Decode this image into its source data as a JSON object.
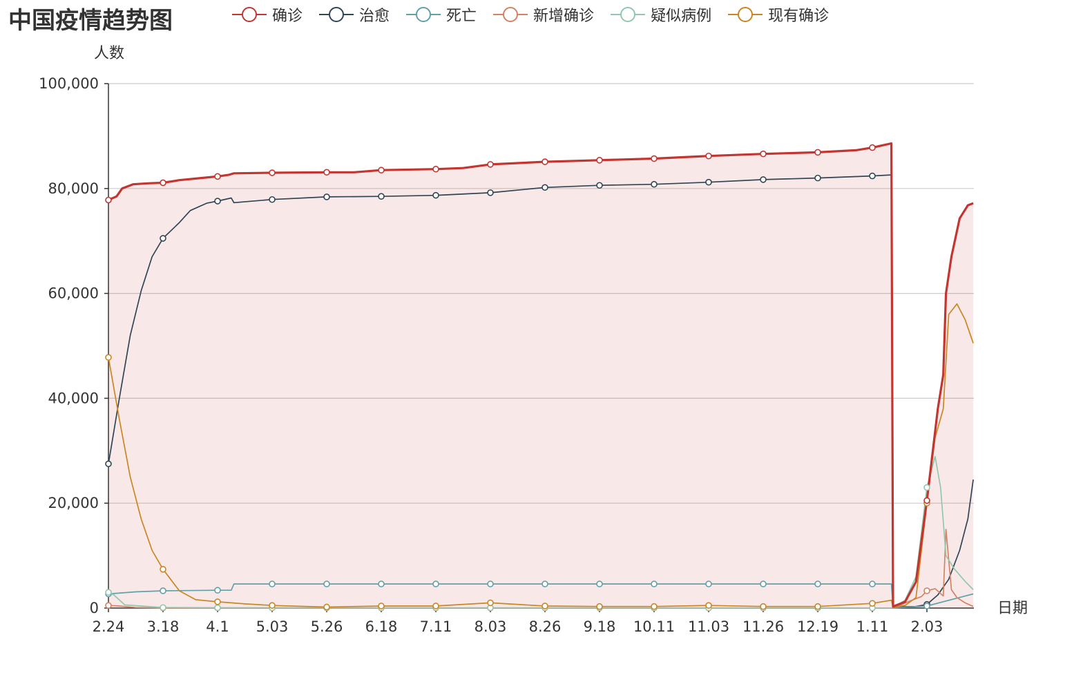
{
  "chart_data": {
    "type": "line",
    "title": "中国疫情趋势图",
    "ylabel": "人数",
    "xlabel": "日期",
    "ylim": [
      0,
      100000
    ],
    "y_ticks": [
      0,
      20000,
      40000,
      60000,
      80000,
      100000
    ],
    "y_tick_labels": [
      "0",
      "20,000",
      "40,000",
      "60,000",
      "80,000",
      "100,000"
    ],
    "x_tick_labels": [
      "2.24",
      "3.18",
      "4.1",
      "5.03",
      "5.26",
      "6.18",
      "7.11",
      "8.03",
      "8.26",
      "9.18",
      "10.11",
      "11.03",
      "11.26",
      "12.19",
      "1.11",
      "2.03"
    ],
    "grid": true,
    "legend_position": "top",
    "series": [
      {
        "name": "确诊",
        "color": "#c23531",
        "area": true,
        "points": [
          [
            0,
            77800
          ],
          [
            0.15,
            78500
          ],
          [
            0.25,
            80000
          ],
          [
            0.45,
            80800
          ],
          [
            0.75,
            81000
          ],
          [
            1,
            81100
          ],
          [
            1.3,
            81600
          ],
          [
            1.7,
            82000
          ],
          [
            2,
            82300
          ],
          [
            2.2,
            82600
          ],
          [
            2.3,
            82900
          ],
          [
            3,
            83000
          ],
          [
            4,
            83100
          ],
          [
            4.5,
            83100
          ],
          [
            5,
            83500
          ],
          [
            6,
            83700
          ],
          [
            6.5,
            83900
          ],
          [
            7,
            84600
          ],
          [
            8,
            85100
          ],
          [
            9,
            85400
          ],
          [
            10,
            85700
          ],
          [
            11,
            86200
          ],
          [
            12,
            86600
          ],
          [
            13,
            86900
          ],
          [
            13.7,
            87300
          ],
          [
            14,
            87800
          ],
          [
            14.35,
            88600
          ],
          [
            14.38,
            300
          ],
          [
            14.6,
            1200
          ],
          [
            14.8,
            5000
          ],
          [
            15,
            20500
          ],
          [
            15.2,
            38000
          ],
          [
            15.3,
            44500
          ],
          [
            15.35,
            60000
          ],
          [
            15.45,
            67000
          ],
          [
            15.6,
            74300
          ],
          [
            15.75,
            76800
          ],
          [
            15.85,
            77200
          ]
        ]
      },
      {
        "name": "治愈",
        "color": "#2f4554",
        "area": false,
        "points": [
          [
            0,
            27500
          ],
          [
            0.2,
            40000
          ],
          [
            0.4,
            52000
          ],
          [
            0.6,
            60500
          ],
          [
            0.8,
            67000
          ],
          [
            1,
            70500
          ],
          [
            1.3,
            73500
          ],
          [
            1.5,
            75800
          ],
          [
            1.8,
            77200
          ],
          [
            2,
            77600
          ],
          [
            2.25,
            78200
          ],
          [
            2.3,
            77300
          ],
          [
            3,
            77900
          ],
          [
            4,
            78400
          ],
          [
            5,
            78500
          ],
          [
            6,
            78700
          ],
          [
            7,
            79200
          ],
          [
            8,
            80200
          ],
          [
            9,
            80600
          ],
          [
            10,
            80800
          ],
          [
            11,
            81200
          ],
          [
            12,
            81700
          ],
          [
            13,
            82000
          ],
          [
            14,
            82400
          ],
          [
            14.35,
            82600
          ],
          [
            14.38,
            200
          ],
          [
            14.8,
            300
          ],
          [
            15,
            700
          ],
          [
            15.2,
            2500
          ],
          [
            15.4,
            5500
          ],
          [
            15.6,
            11000
          ],
          [
            15.75,
            17000
          ],
          [
            15.85,
            24500
          ]
        ]
      },
      {
        "name": "死亡",
        "color": "#61a0a8",
        "area": false,
        "points": [
          [
            0,
            2700
          ],
          [
            0.5,
            3100
          ],
          [
            1,
            3300
          ],
          [
            2,
            3400
          ],
          [
            2.25,
            3400
          ],
          [
            2.3,
            4600
          ],
          [
            14.35,
            4600
          ],
          [
            14.38,
            10
          ],
          [
            15,
            400
          ],
          [
            15.85,
            2700
          ]
        ]
      },
      {
        "name": "新增确诊",
        "color": "#d48265",
        "area": false,
        "points": [
          [
            0,
            500
          ],
          [
            0.2,
            400
          ],
          [
            0.5,
            100
          ],
          [
            1,
            30
          ],
          [
            14.35,
            20
          ],
          [
            14.38,
            0
          ],
          [
            14.5,
            500
          ],
          [
            14.7,
            1400
          ],
          [
            14.9,
            2200
          ],
          [
            15,
            3300
          ],
          [
            15.15,
            3700
          ],
          [
            15.3,
            2300
          ],
          [
            15.35,
            15000
          ],
          [
            15.45,
            3500
          ],
          [
            15.55,
            2000
          ],
          [
            15.7,
            1000
          ],
          [
            15.85,
            300
          ]
        ]
      },
      {
        "name": "疑似病例",
        "color": "#91c7ae",
        "area": false,
        "points": [
          [
            0,
            3000
          ],
          [
            0.1,
            2500
          ],
          [
            0.3,
            600
          ],
          [
            0.6,
            400
          ],
          [
            1,
            100
          ],
          [
            2,
            60
          ],
          [
            14.35,
            30
          ],
          [
            14.38,
            100
          ],
          [
            14.6,
            1500
          ],
          [
            14.8,
            6000
          ],
          [
            15,
            23000
          ],
          [
            15.15,
            28900
          ],
          [
            15.25,
            23000
          ],
          [
            15.35,
            10000
          ],
          [
            15.5,
            7500
          ],
          [
            15.7,
            5100
          ],
          [
            15.85,
            3500
          ]
        ]
      },
      {
        "name": "现有确诊",
        "color": "#ca8622",
        "area": false,
        "points": [
          [
            0,
            47800
          ],
          [
            0.2,
            36000
          ],
          [
            0.4,
            25000
          ],
          [
            0.6,
            17000
          ],
          [
            0.8,
            11000
          ],
          [
            1,
            7400
          ],
          [
            1.3,
            3300
          ],
          [
            1.6,
            1600
          ],
          [
            2,
            1200
          ],
          [
            2.5,
            800
          ],
          [
            3,
            500
          ],
          [
            4,
            200
          ],
          [
            5,
            400
          ],
          [
            6,
            400
          ],
          [
            7,
            1000
          ],
          [
            8,
            400
          ],
          [
            9,
            300
          ],
          [
            10,
            300
          ],
          [
            11,
            500
          ],
          [
            12,
            300
          ],
          [
            13,
            300
          ],
          [
            14,
            900
          ],
          [
            14.35,
            1500
          ],
          [
            14.38,
            100
          ],
          [
            14.6,
            500
          ],
          [
            14.8,
            2000
          ],
          [
            15,
            20000
          ],
          [
            15.15,
            32500
          ],
          [
            15.3,
            38000
          ],
          [
            15.4,
            56000
          ],
          [
            15.55,
            58000
          ],
          [
            15.7,
            55000
          ],
          [
            15.85,
            50500
          ]
        ]
      }
    ]
  }
}
